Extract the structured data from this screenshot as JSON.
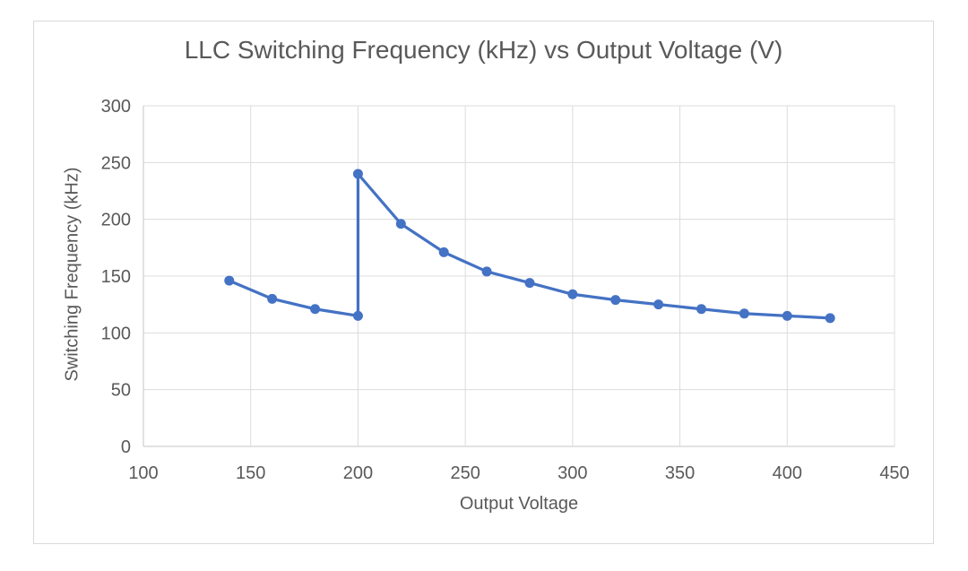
{
  "chart_data": {
    "type": "line",
    "title": "LLC Switching Frequency (kHz) vs Output Voltage (V)",
    "xlabel": "Output Voltage",
    "ylabel": "Switching Frequency (kHz)",
    "x": [
      140,
      160,
      180,
      200,
      200,
      220,
      240,
      260,
      280,
      300,
      320,
      340,
      360,
      380,
      400,
      420
    ],
    "y": [
      146,
      130,
      121,
      115,
      240,
      196,
      171,
      154,
      144,
      134,
      129,
      125,
      121,
      117,
      115,
      113
    ],
    "xlim": [
      100,
      450
    ],
    "ylim": [
      0,
      300
    ],
    "x_ticks": [
      100,
      150,
      200,
      250,
      300,
      350,
      400,
      450
    ],
    "y_ticks": [
      0,
      50,
      100,
      150,
      200,
      250,
      300
    ],
    "grid": true,
    "legend": false,
    "line_color": "#4472C4",
    "marker_color": "#4472C4",
    "grid_color": "#DCDCDC",
    "axis_color": "#C6C6C6",
    "text_color": "#595959"
  }
}
